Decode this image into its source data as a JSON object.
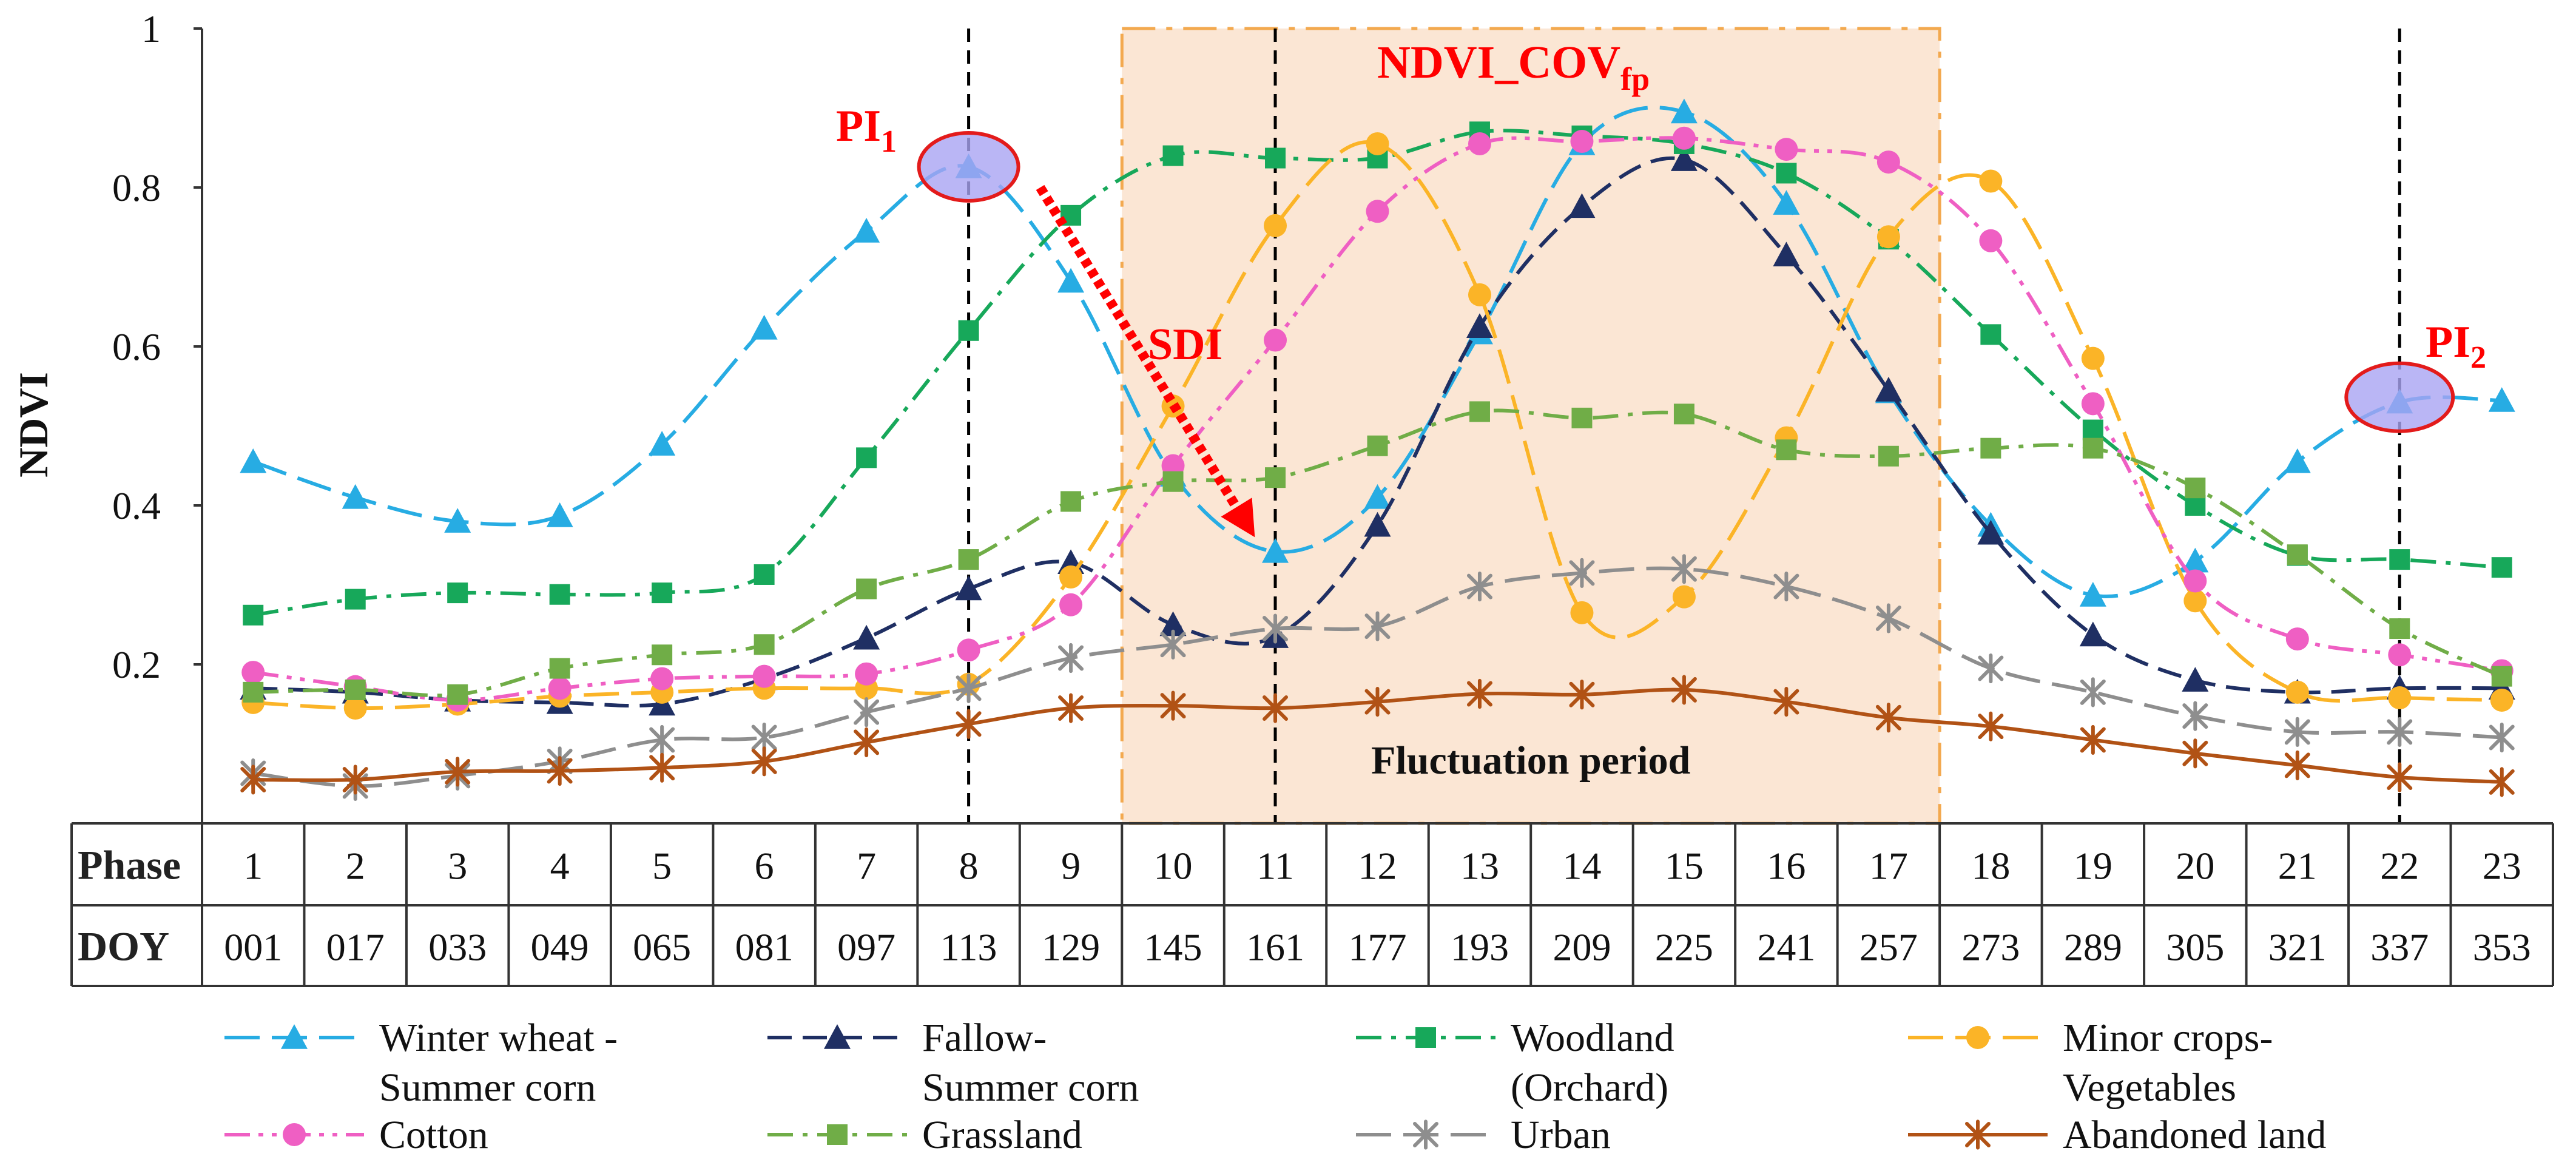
{
  "chart_data": {
    "type": "line",
    "title": "",
    "ylabel": "NDVI",
    "xlabel": "",
    "ylim": [
      0,
      1
    ],
    "yticks": [
      {
        "value": 0.2,
        "label": "0.2"
      },
      {
        "value": 0.4,
        "label": "0.4"
      },
      {
        "value": 0.6,
        "label": "0.6"
      },
      {
        "value": 0.8,
        "label": "0.8"
      },
      {
        "value": 1.0,
        "label": "1"
      }
    ],
    "x": [
      1,
      2,
      3,
      4,
      5,
      6,
      7,
      8,
      9,
      10,
      11,
      12,
      13,
      14,
      15,
      16,
      17,
      18,
      19,
      20,
      21,
      22,
      23
    ],
    "table": {
      "rows": [
        {
          "header": "Phase",
          "cells": [
            "1",
            "2",
            "3",
            "4",
            "5",
            "6",
            "7",
            "8",
            "9",
            "10",
            "11",
            "12",
            "13",
            "14",
            "15",
            "16",
            "17",
            "18",
            "19",
            "20",
            "21",
            "22",
            "23"
          ]
        },
        {
          "header": "DOY",
          "cells": [
            "001",
            "017",
            "033",
            "049",
            "065",
            "081",
            "097",
            "113",
            "129",
            "145",
            "161",
            "177",
            "193",
            "209",
            "225",
            "241",
            "257",
            "273",
            "289",
            "305",
            "321",
            "337",
            "353"
          ]
        }
      ]
    },
    "series": [
      {
        "name": "Winter wheat - Summer corn",
        "legend_lines": [
          "Winter wheat -",
          "Summer corn"
        ],
        "color": "#27ace3",
        "dash": "long-dash",
        "marker": "triangle",
        "marker_color": "#27ace3",
        "values": [
          0.455,
          0.41,
          0.38,
          0.387,
          0.477,
          0.623,
          0.745,
          0.826,
          0.682,
          0.438,
          0.342,
          0.41,
          0.617,
          0.855,
          0.895,
          0.78,
          0.543,
          0.375,
          0.287,
          0.33,
          0.455,
          0.53,
          0.532
        ]
      },
      {
        "name": "Fallow-Summer corn",
        "legend_lines": [
          "Fallow-",
          "Summer corn"
        ],
        "color": "#1f2f63",
        "dash": "medium-dash",
        "marker": "triangle",
        "marker_color": "#1f2f63",
        "values": [
          0.17,
          0.165,
          0.155,
          0.152,
          0.15,
          0.182,
          0.233,
          0.295,
          0.328,
          0.25,
          0.235,
          0.375,
          0.625,
          0.776,
          0.835,
          0.715,
          0.545,
          0.365,
          0.237,
          0.18,
          0.165,
          0.17,
          0.17
        ]
      },
      {
        "name": "Woodland (Orchard)",
        "legend_lines": [
          "Woodland",
          "(Orchard)"
        ],
        "color": "#17a85a",
        "dash": "dash-dot",
        "marker": "square",
        "marker_color": "#17a85a",
        "values": [
          0.262,
          0.282,
          0.29,
          0.288,
          0.29,
          0.313,
          0.46,
          0.62,
          0.765,
          0.84,
          0.837,
          0.837,
          0.87,
          0.865,
          0.855,
          0.818,
          0.735,
          0.615,
          0.495,
          0.4,
          0.337,
          0.332,
          0.322
        ]
      },
      {
        "name": "Minor crops-Vegetables",
        "legend_lines": [
          "Minor crops-",
          "Vegetables"
        ],
        "color": "#fbb427",
        "dash": "long-dash",
        "marker": "circle",
        "marker_color": "#fbb427",
        "values": [
          0.152,
          0.145,
          0.15,
          0.16,
          0.165,
          0.17,
          0.17,
          0.175,
          0.31,
          0.525,
          0.752,
          0.855,
          0.665,
          0.265,
          0.285,
          0.485,
          0.738,
          0.808,
          0.585,
          0.28,
          0.165,
          0.158,
          0.155
        ]
      },
      {
        "name": "Cotton",
        "legend_lines": [
          "Cotton"
        ],
        "color": "#ef5fc3",
        "dash": "dash-dot-dot",
        "marker": "circle",
        "marker_color": "#ef5fc3",
        "values": [
          0.19,
          0.172,
          0.155,
          0.17,
          0.182,
          0.185,
          0.188,
          0.218,
          0.275,
          0.45,
          0.608,
          0.77,
          0.855,
          0.858,
          0.862,
          0.848,
          0.832,
          0.733,
          0.528,
          0.305,
          0.232,
          0.212,
          0.192
        ]
      },
      {
        "name": "Grassland",
        "legend_lines": [
          "Grassland"
        ],
        "color": "#70ad47",
        "dash": "dash-dot",
        "marker": "square",
        "marker_color": "#70ad47",
        "values": [
          0.165,
          0.168,
          0.162,
          0.195,
          0.212,
          0.225,
          0.295,
          0.332,
          0.405,
          0.43,
          0.435,
          0.475,
          0.518,
          0.51,
          0.515,
          0.47,
          0.462,
          0.472,
          0.472,
          0.422,
          0.338,
          0.245,
          0.185
        ]
      },
      {
        "name": "Urban",
        "legend_lines": [
          "Urban"
        ],
        "color": "#8e8e8e",
        "dash": "long-dash",
        "marker": "asterisk",
        "marker_color": "#8e8e8e",
        "values": [
          0.063,
          0.047,
          0.06,
          0.078,
          0.105,
          0.108,
          0.14,
          0.17,
          0.208,
          0.225,
          0.245,
          0.248,
          0.298,
          0.315,
          0.32,
          0.298,
          0.258,
          0.195,
          0.165,
          0.135,
          0.115,
          0.115,
          0.108
        ]
      },
      {
        "name": "Abandoned land",
        "legend_lines": [
          "Abandoned land"
        ],
        "color": "#b15215",
        "dash": "solid",
        "marker": "asterisk",
        "marker_color": "#b15215",
        "values": [
          0.055,
          0.055,
          0.065,
          0.066,
          0.07,
          0.078,
          0.102,
          0.125,
          0.145,
          0.148,
          0.145,
          0.153,
          0.163,
          0.162,
          0.168,
          0.153,
          0.133,
          0.122,
          0.105,
          0.088,
          0.073,
          0.058,
          0.052
        ]
      }
    ],
    "shaded_region": {
      "from_phase": 10,
      "to_phase": 17,
      "color": "#fbe6d4",
      "border_color": "#f3a94f",
      "label": "Fluctuation period"
    },
    "vertical_lines": [
      8,
      11,
      22
    ],
    "annotations": {
      "ndvi_cov": {
        "text": "NDVI_COV",
        "subscript": "fp",
        "color": "#ff0000"
      },
      "pi1": {
        "text": "PI",
        "subscript": "1",
        "color": "#ff0000",
        "phase": 8,
        "value": 0.826
      },
      "pi2": {
        "text": "PI",
        "subscript": "2",
        "color": "#ff0000",
        "phase": 22,
        "value": 0.53
      },
      "sdi": {
        "text": "SDI",
        "color": "#ff0000",
        "arrow_from": {
          "phase": 8.7,
          "value": 0.8
        },
        "arrow_to": {
          "phase": 10.8,
          "value": 0.36
        }
      }
    },
    "legend_position": "bottom",
    "grid": false
  }
}
